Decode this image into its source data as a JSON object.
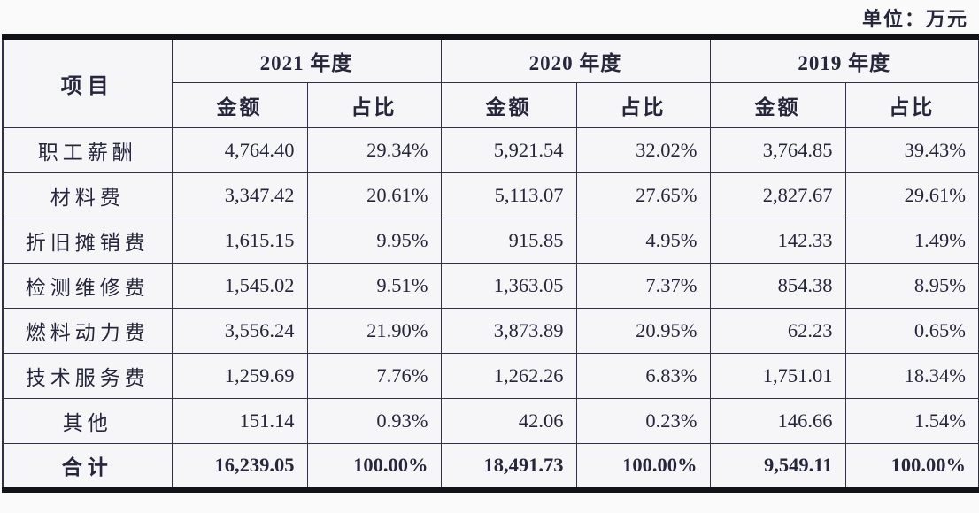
{
  "unit_label": "单位：万元",
  "table": {
    "item_header": "项目",
    "amount_header": "金额",
    "ratio_header": "占比",
    "year_groups": [
      "2021 年度",
      "2020 年度",
      "2019 年度"
    ],
    "rows": [
      {
        "item": "职工薪酬",
        "values": [
          "4,764.40",
          "29.34%",
          "5,921.54",
          "32.02%",
          "3,764.85",
          "39.43%"
        ]
      },
      {
        "item": "材料费",
        "values": [
          "3,347.42",
          "20.61%",
          "5,113.07",
          "27.65%",
          "2,827.67",
          "29.61%"
        ]
      },
      {
        "item": "折旧摊销费",
        "values": [
          "1,615.15",
          "9.95%",
          "915.85",
          "4.95%",
          "142.33",
          "1.49%"
        ]
      },
      {
        "item": "检测维修费",
        "values": [
          "1,545.02",
          "9.51%",
          "1,363.05",
          "7.37%",
          "854.38",
          "8.95%"
        ]
      },
      {
        "item": "燃料动力费",
        "values": [
          "3,556.24",
          "21.90%",
          "3,873.89",
          "20.95%",
          "62.23",
          "0.65%"
        ]
      },
      {
        "item": "技术服务费",
        "values": [
          "1,259.69",
          "7.76%",
          "1,262.26",
          "6.83%",
          "1,751.01",
          "18.34%"
        ]
      },
      {
        "item": "其他",
        "values": [
          "151.14",
          "0.93%",
          "42.06",
          "0.23%",
          "146.66",
          "1.54%"
        ]
      }
    ],
    "total_row": {
      "item": "合计",
      "values": [
        "16,239.05",
        "100.00%",
        "18,491.73",
        "100.00%",
        "9,549.11",
        "100.00%"
      ]
    }
  }
}
